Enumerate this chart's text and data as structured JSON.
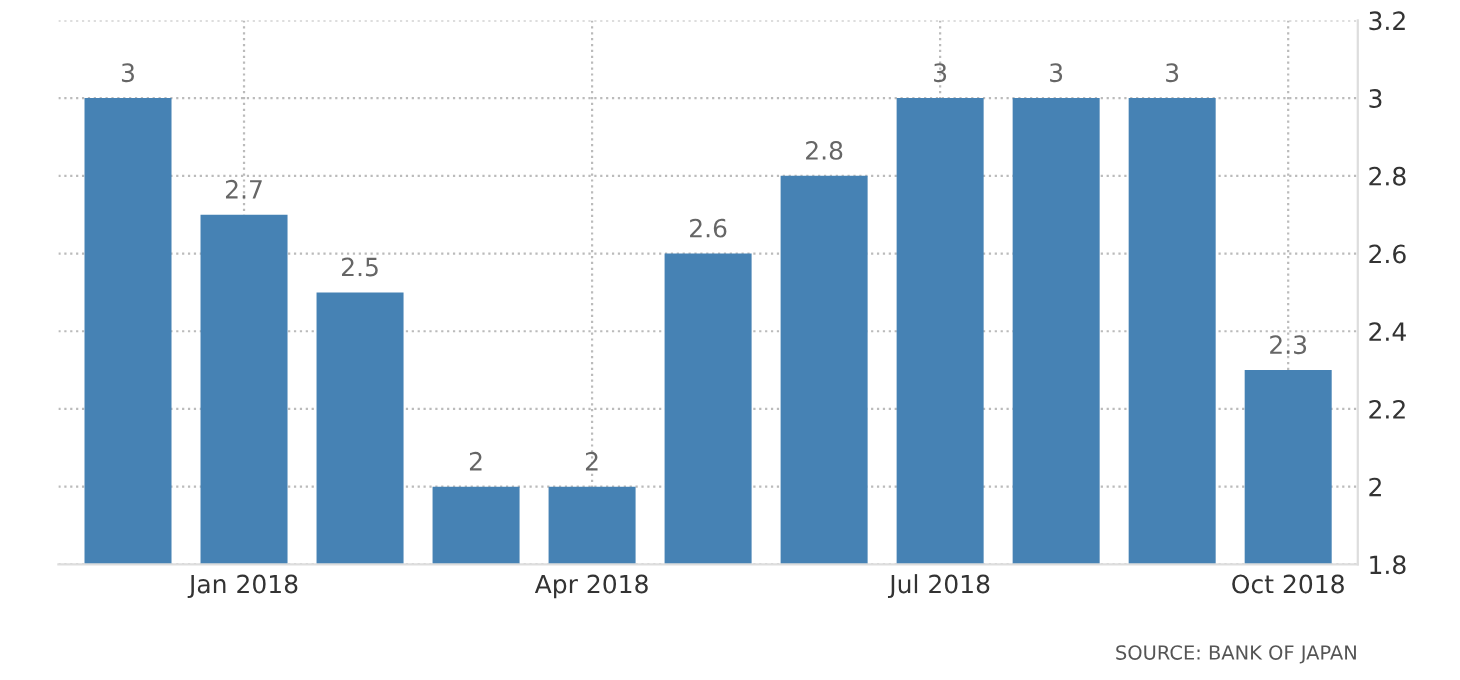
{
  "chart_data": {
    "type": "bar",
    "categories": [
      null,
      "Jan 2018",
      null,
      null,
      "Apr 2018",
      null,
      null,
      "Jul 2018",
      null,
      null,
      "Oct 2018"
    ],
    "values": [
      3,
      2.7,
      2.5,
      2,
      2,
      2.6,
      2.8,
      3,
      3,
      3,
      2.3
    ],
    "color": "#4682b4",
    "ylim": [
      1.8,
      3.2
    ],
    "yticks": [
      1.8,
      2,
      2.2,
      2.4,
      2.6,
      2.8,
      3,
      3.2
    ],
    "grid": true,
    "data_labels": true,
    "annotations": [
      "SOURCE: BANK OF JAPAN"
    ]
  }
}
